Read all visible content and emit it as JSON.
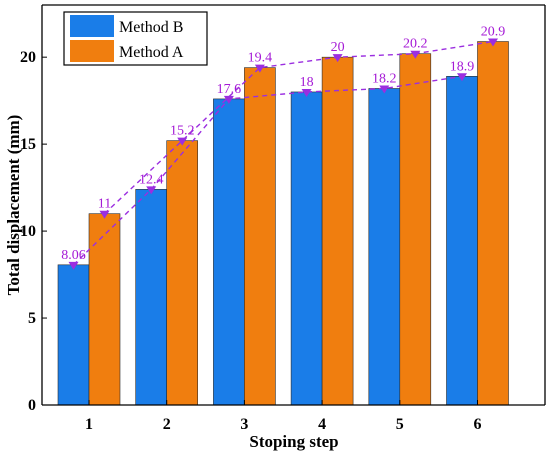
{
  "chart_data": {
    "type": "bar",
    "xlabel": "Stoping step",
    "ylabel": "Total displacement (mm)",
    "categories": [
      "1",
      "2",
      "3",
      "4",
      "5",
      "6"
    ],
    "ylim": [
      0,
      23
    ],
    "yticks": [
      0,
      5,
      10,
      15,
      20
    ],
    "grid": false,
    "legend_position": "top-left",
    "series": [
      {
        "name": "Method B",
        "color": "#1a7de8",
        "values": [
          8.06,
          12.4,
          17.6,
          18,
          18.2,
          18.9
        ],
        "labels": [
          "8.06",
          "12.4",
          "17.6",
          "18",
          "18.2",
          "18.9"
        ]
      },
      {
        "name": "Method A",
        "color": "#f07e0f",
        "values": [
          11,
          15.2,
          19.4,
          20,
          20.2,
          20.9
        ],
        "labels": [
          "11",
          "15.2",
          "19.4",
          "20",
          "20.2",
          "20.9"
        ]
      }
    ],
    "trend_line_color": "#9b2ee0",
    "marker": "triangle-down"
  }
}
